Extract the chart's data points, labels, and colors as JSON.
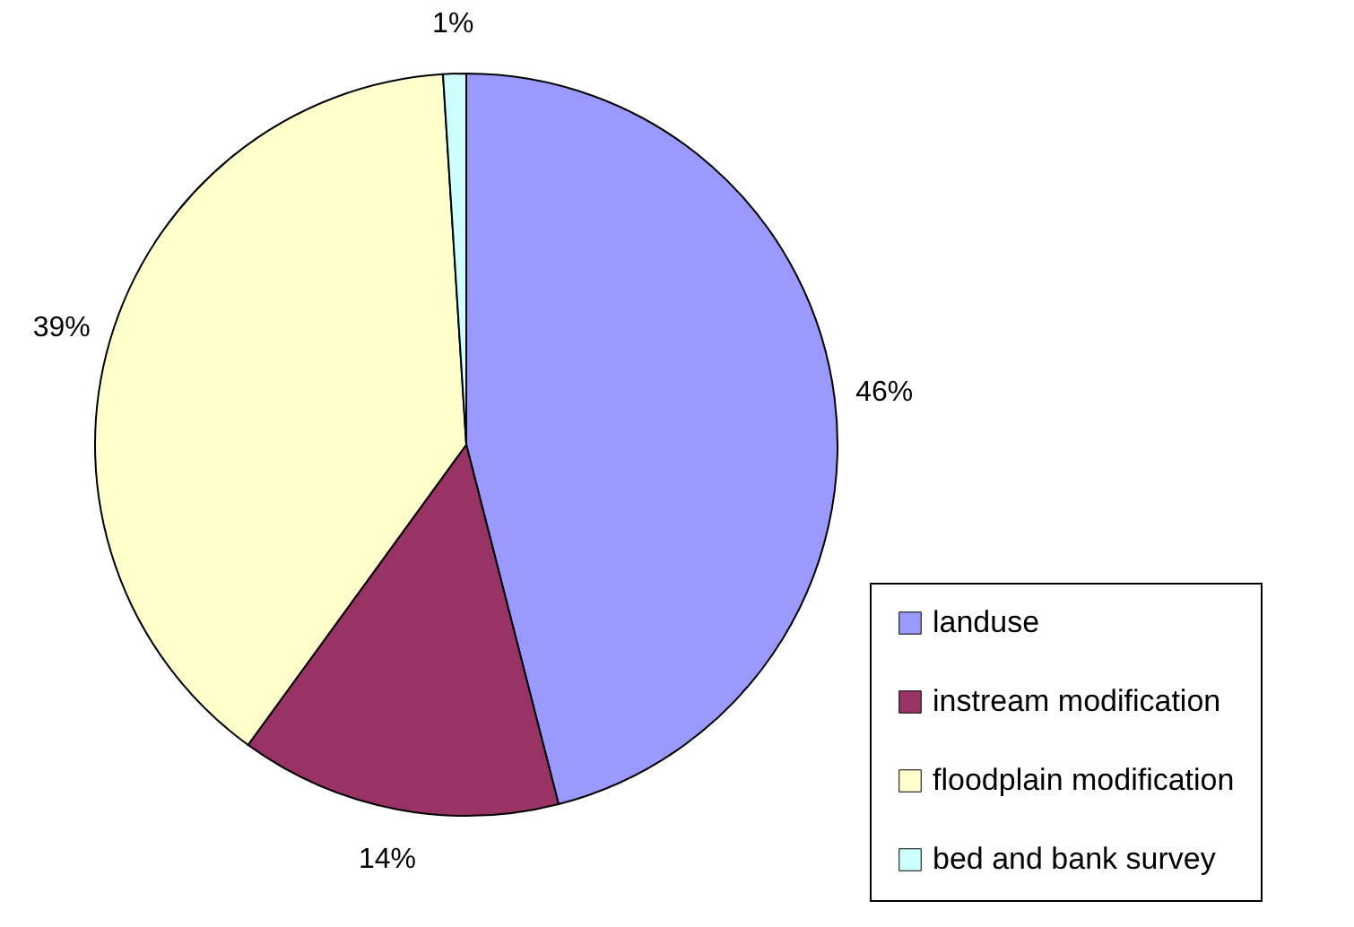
{
  "chart_data": {
    "type": "pie",
    "categories": [
      "landuse",
      "instream modification",
      "floodplain modification",
      "bed and bank survey"
    ],
    "values": [
      46,
      14,
      39,
      1
    ],
    "colors": [
      "#9999ff",
      "#993366",
      "#ffffcc",
      "#ccffff"
    ],
    "value_labels": [
      "46%",
      "14%",
      "39%",
      "1%"
    ],
    "legend": "bottom right"
  }
}
